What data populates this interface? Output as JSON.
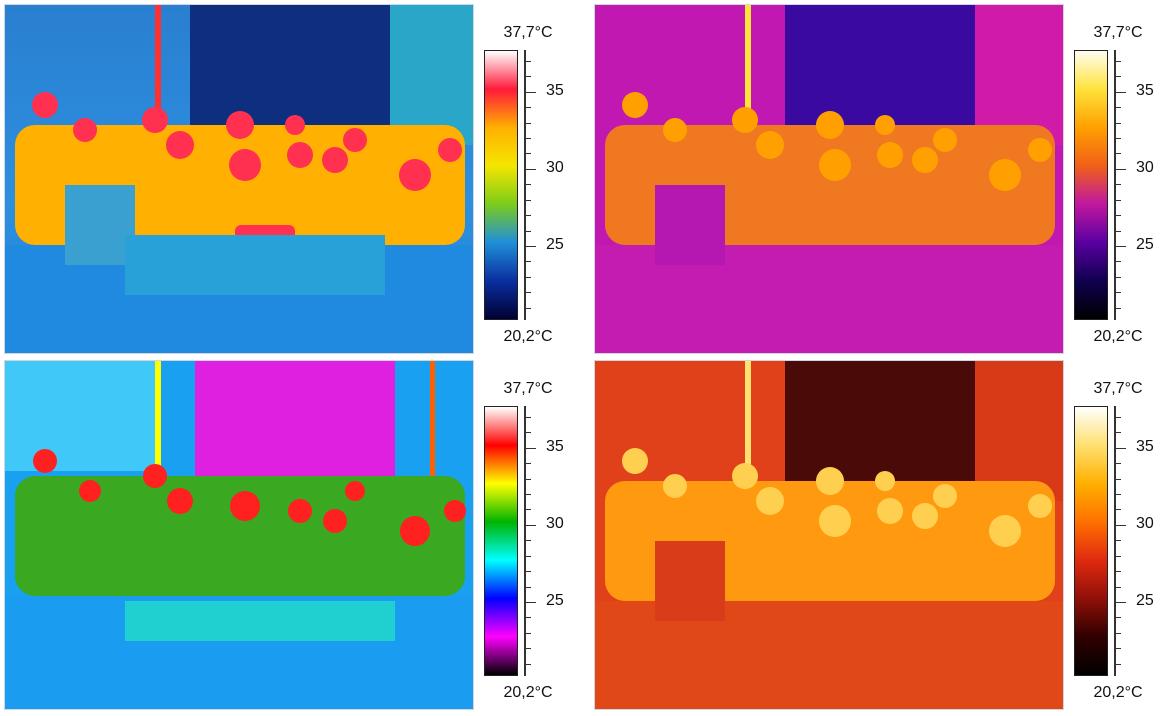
{
  "panels": [
    {
      "palette": "rainbow",
      "colors": [
        "#ffffff",
        "#ff1a3a",
        "#ffb000",
        "#f4e600",
        "#7ccc1a",
        "#1f8fd8",
        "#0a2fa0",
        "#000033"
      ],
      "scale": {
        "max_label": "37,7°C",
        "min_label": "20,2°C",
        "ticks": [
          "35",
          "30",
          "25"
        ]
      }
    },
    {
      "palette": "iron",
      "colors": [
        "#fffef0",
        "#ffe23a",
        "#ffa000",
        "#f06018",
        "#c018a0",
        "#5a00a0",
        "#100050",
        "#000000"
      ],
      "scale": {
        "max_label": "37,7°C",
        "min_label": "20,2°C",
        "ticks": [
          "35",
          "30",
          "25"
        ]
      }
    },
    {
      "palette": "rainbow-hc",
      "colors": [
        "#ffffff",
        "#ff0000",
        "#ffff00",
        "#00b400",
        "#00ffff",
        "#0000ff",
        "#ff00ff",
        "#000000"
      ],
      "scale": {
        "max_label": "37,7°C",
        "min_label": "20,2°C",
        "ticks": [
          "35",
          "30",
          "25"
        ]
      }
    },
    {
      "palette": "hot",
      "colors": [
        "#ffffff",
        "#ffe070",
        "#ffb000",
        "#ff7000",
        "#e02a10",
        "#901008",
        "#300000",
        "#000000"
      ],
      "scale": {
        "max_label": "37,7°C",
        "min_label": "20,2°C",
        "ticks": [
          "35",
          "30",
          "25"
        ]
      }
    }
  ]
}
